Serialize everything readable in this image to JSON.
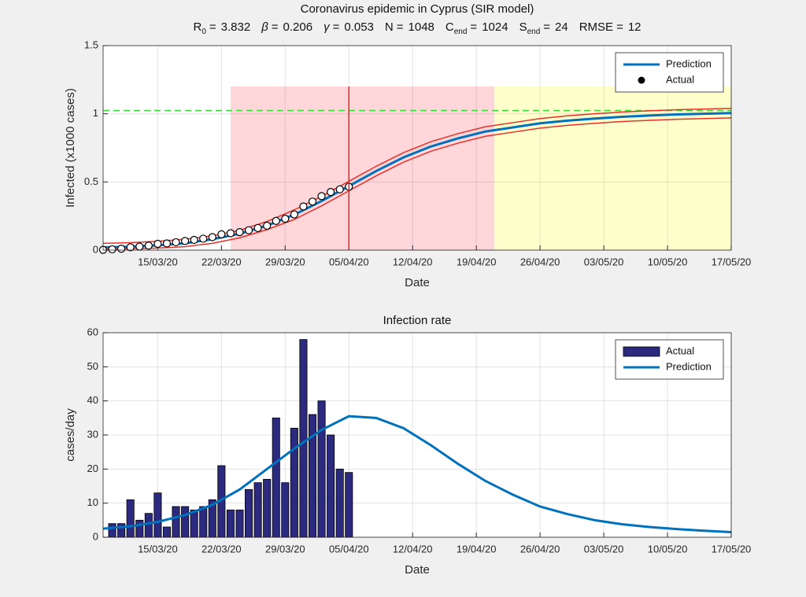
{
  "chart_data": [
    {
      "type": "line",
      "title": "Coronavirus epidemic in Cyprus (SIR model)",
      "parameters": {
        "sign": "=",
        "items": [
          {
            "name": "R",
            "sub": "0",
            "value": 3.832
          },
          {
            "name": "β",
            "value": 0.206
          },
          {
            "name": "γ",
            "value": 0.053
          },
          {
            "name": "N",
            "value": 1048
          },
          {
            "name": "C",
            "sub": "end",
            "value": 1024
          },
          {
            "name": "S",
            "sub": "end",
            "value": 24
          },
          {
            "name": "RMSE",
            "value": 12
          }
        ]
      },
      "xlabel": "Date",
      "ylabel": "Infected (x1000 cases)",
      "xlim": [
        "09/03/20",
        "17/05/20"
      ],
      "xticks": [
        "15/03/20",
        "22/03/20",
        "29/03/20",
        "05/04/20",
        "12/04/20",
        "19/04/20",
        "26/04/20",
        "03/05/20",
        "10/05/20",
        "17/05/20"
      ],
      "ylim": [
        0,
        1.5
      ],
      "yticks": [
        0,
        0.5,
        1,
        1.5
      ],
      "grid": true,
      "legend": "northeast",
      "regions": [
        {
          "from": "23/03/20",
          "to": "21/04/20",
          "ymax": 1.2,
          "color": "#ffd6d9"
        },
        {
          "from": "21/04/20",
          "to": "17/05/20",
          "ymax": 1.2,
          "color": "#ffffcc"
        }
      ],
      "hline": {
        "y": 1.024,
        "color": "#33dd33"
      },
      "vline": {
        "x": "05/04/20",
        "color": "#ee2222"
      },
      "series": [
        {
          "name": "Prediction",
          "style": "line",
          "color": "#0072bd",
          "x": [
            "09/03/20",
            "12/03/20",
            "15/03/20",
            "18/03/20",
            "21/03/20",
            "24/03/20",
            "27/03/20",
            "30/03/20",
            "02/04/20",
            "05/04/20",
            "08/04/20",
            "11/04/20",
            "14/04/20",
            "17/04/20",
            "20/04/20",
            "23/04/20",
            "26/04/20",
            "29/04/20",
            "02/05/20",
            "05/05/20",
            "08/05/20",
            "11/05/20",
            "14/05/20",
            "17/05/20"
          ],
          "values": [
            0.02,
            0.025,
            0.035,
            0.05,
            0.08,
            0.12,
            0.18,
            0.26,
            0.36,
            0.47,
            0.58,
            0.68,
            0.76,
            0.82,
            0.87,
            0.9,
            0.93,
            0.95,
            0.965,
            0.978,
            0.987,
            0.995,
            1.0,
            1.005
          ],
          "bounds": {
            "color": "#e8302a",
            "upper": [
              0.05,
              0.055,
              0.065,
              0.08,
              0.105,
              0.145,
              0.21,
              0.295,
              0.395,
              0.505,
              0.615,
              0.715,
              0.795,
              0.855,
              0.905,
              0.935,
              0.965,
              0.985,
              1.0,
              1.013,
              1.022,
              1.03,
              1.035,
              1.04
            ],
            "lower": [
              0.005,
              0.01,
              0.015,
              0.025,
              0.05,
              0.09,
              0.15,
              0.225,
              0.325,
              0.435,
              0.545,
              0.645,
              0.725,
              0.785,
              0.835,
              0.865,
              0.895,
              0.915,
              0.93,
              0.943,
              0.952,
              0.96,
              0.965,
              0.97
            ]
          }
        },
        {
          "name": "Actual",
          "style": "marker",
          "color": "#000000",
          "x": [
            "09/03/20",
            "10/03/20",
            "11/03/20",
            "12/03/20",
            "13/03/20",
            "14/03/20",
            "15/03/20",
            "16/03/20",
            "17/03/20",
            "18/03/20",
            "19/03/20",
            "20/03/20",
            "21/03/20",
            "22/03/20",
            "23/03/20",
            "24/03/20",
            "25/03/20",
            "26/03/20",
            "27/03/20",
            "28/03/20",
            "29/03/20",
            "30/03/20",
            "31/03/20",
            "01/04/20",
            "02/04/20",
            "03/04/20",
            "04/04/20",
            "05/04/20"
          ],
          "values": [
            0.002,
            0.006,
            0.01,
            0.021,
            0.026,
            0.033,
            0.046,
            0.049,
            0.058,
            0.067,
            0.075,
            0.084,
            0.095,
            0.116,
            0.124,
            0.132,
            0.146,
            0.162,
            0.179,
            0.214,
            0.23,
            0.262,
            0.32,
            0.356,
            0.396,
            0.426,
            0.446,
            0.465
          ]
        }
      ]
    },
    {
      "type": "bar",
      "title": "Infection rate",
      "xlabel": "Date",
      "ylabel": "cases/day",
      "xlim": [
        "09/03/20",
        "17/05/20"
      ],
      "xticks": [
        "15/03/20",
        "22/03/20",
        "29/03/20",
        "05/04/20",
        "12/04/20",
        "19/04/20",
        "26/04/20",
        "03/05/20",
        "10/05/20",
        "17/05/20"
      ],
      "ylim": [
        0,
        60
      ],
      "yticks": [
        0,
        10,
        20,
        30,
        40,
        50,
        60
      ],
      "grid": true,
      "legend": "northeast",
      "series": [
        {
          "name": "Actual",
          "style": "bar",
          "color": "#2b2a7f",
          "x": [
            "10/03/20",
            "11/03/20",
            "12/03/20",
            "13/03/20",
            "14/03/20",
            "15/03/20",
            "16/03/20",
            "17/03/20",
            "18/03/20",
            "19/03/20",
            "20/03/20",
            "21/03/20",
            "22/03/20",
            "23/03/20",
            "24/03/20",
            "25/03/20",
            "26/03/20",
            "27/03/20",
            "28/03/20",
            "29/03/20",
            "30/03/20",
            "31/03/20",
            "01/04/20",
            "02/04/20",
            "03/04/20",
            "04/04/20",
            "05/04/20"
          ],
          "values": [
            4,
            4,
            11,
            5,
            7,
            13,
            3,
            9,
            9,
            8,
            9,
            11,
            21,
            8,
            8,
            14,
            16,
            17,
            35,
            16,
            32,
            58,
            36,
            40,
            30,
            20,
            19
          ]
        },
        {
          "name": "Prediction",
          "style": "line",
          "color": "#0072bd",
          "x": [
            "09/03/20",
            "12/03/20",
            "15/03/20",
            "18/03/20",
            "21/03/20",
            "24/03/20",
            "27/03/20",
            "30/03/20",
            "02/04/20",
            "05/04/20",
            "08/04/20",
            "11/04/20",
            "14/04/20",
            "17/04/20",
            "20/04/20",
            "23/04/20",
            "26/04/20",
            "29/04/20",
            "02/05/20",
            "05/05/20",
            "08/05/20",
            "11/05/20",
            "14/05/20",
            "17/05/20"
          ],
          "values": [
            2.5,
            3.2,
            4.5,
            6.5,
            9.5,
            14,
            20,
            26,
            31.5,
            35.5,
            35,
            32,
            27,
            21.5,
            16.5,
            12.5,
            9,
            6.8,
            5,
            3.8,
            3,
            2.4,
            1.9,
            1.5
          ]
        }
      ]
    }
  ]
}
